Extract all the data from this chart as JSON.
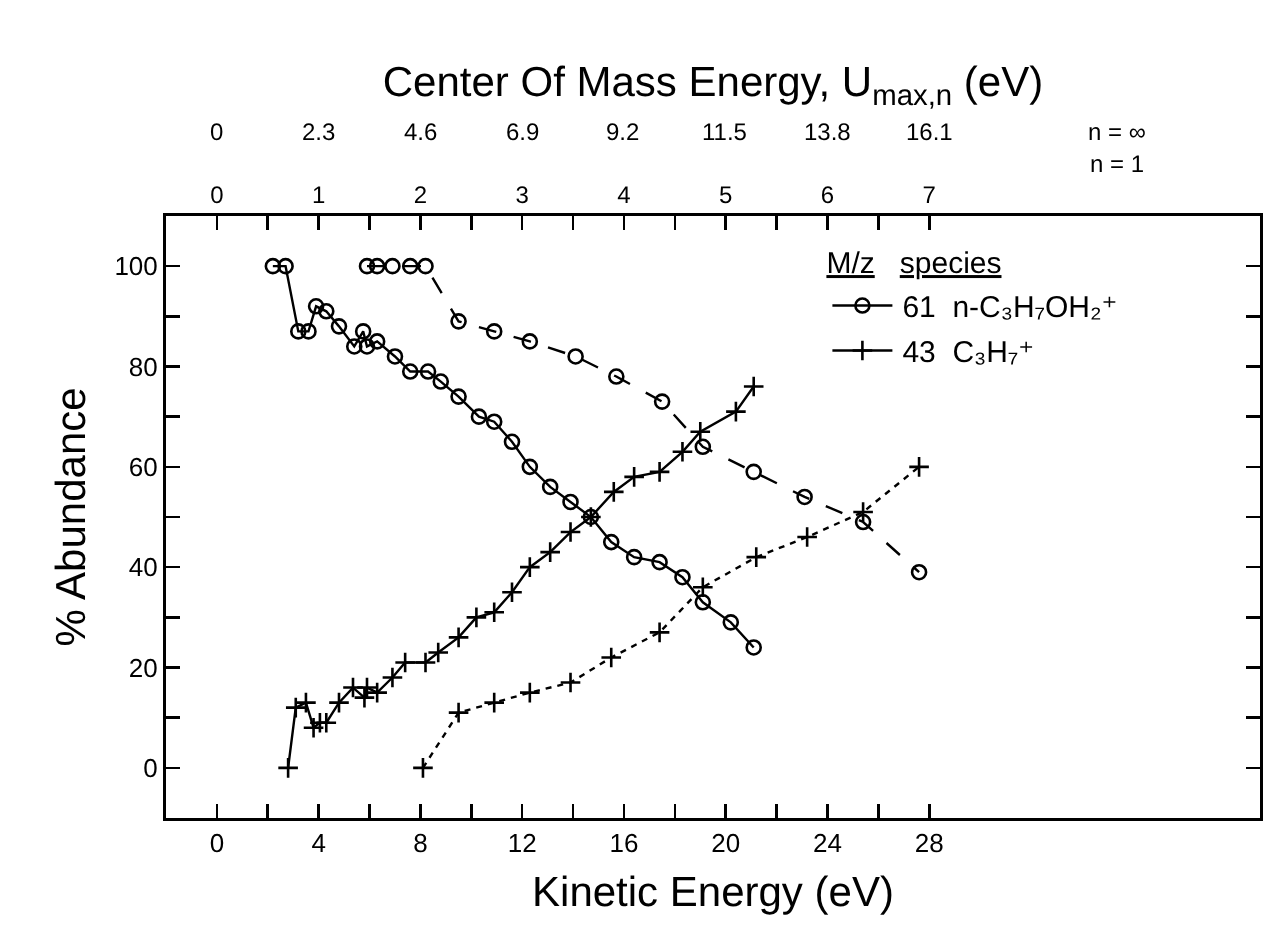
{
  "chart_data": {
    "type": "line",
    "xlabel": "Kinetic Energy (eV)",
    "ylabel": "% Abundance",
    "x2label": "Center Of Mass Energy, U$_{max,n}$ (eV)",
    "legend": "top right",
    "legend_title": "M/z   species",
    "annotations": [
      "0",
      "2.3",
      "4.6",
      "6.9",
      "9.2",
      "11.5",
      "13.8",
      "16.1",
      "n = ∞",
      "n = 1"
    ],
    "xlim": [
      -2,
      41
    ],
    "ylim": [
      -10,
      110
    ],
    "xticks": [
      0,
      {
        "value": 2,
        "label": null
      },
      4,
      {
        "value": 6,
        "label": null
      },
      8,
      {
        "value": 10,
        "label": null
      },
      12,
      {
        "value": 14,
        "label": null
      },
      16,
      {
        "value": 18,
        "label": null
      },
      20,
      {
        "value": 22,
        "label": null
      },
      24,
      {
        "value": 26,
        "label": null
      },
      28
    ],
    "yticks": [
      0,
      {
        "value": 10,
        "label": null
      },
      20,
      {
        "value": 30,
        "label": null
      },
      40,
      {
        "value": 50,
        "label": null
      },
      60,
      {
        "value": 70,
        "label": null
      },
      80,
      {
        "value": 90,
        "label": null
      },
      100
    ],
    "x2lim": [
      -0.5,
      10.25
    ],
    "x2ticks": [
      0,
      {
        "value": 0.5,
        "label": null
      },
      1,
      {
        "value": 1.5,
        "label": null
      },
      2,
      {
        "value": 2.5,
        "label": null
      },
      3,
      {
        "value": 3.5,
        "label": null
      },
      4,
      {
        "value": 4.5,
        "label": null
      },
      5,
      {
        "value": 5.5,
        "label": null
      },
      6,
      {
        "value": 6.5,
        "label": null
      },
      7
    ],
    "series": [
      {
        "name": "61  n-C₃H₇OH₂⁺",
        "color": "#000000",
        "marker": "circle",
        "line_style": "solid",
        "x": [
          2.2,
          2.7,
          3.2,
          3.6,
          3.9,
          4.3,
          4.8,
          5.4,
          5.75,
          5.9,
          6.3,
          7.0,
          7.6,
          8.3,
          8.8,
          9.5,
          10.3,
          10.9,
          11.6,
          12.3,
          13.1,
          13.9,
          14.7,
          15.5,
          16.4,
          17.4,
          18.3,
          19.1,
          20.2,
          21.1
        ],
        "values": [
          100,
          100,
          87,
          87,
          92,
          91,
          88,
          84,
          87,
          84,
          85,
          82,
          79,
          79,
          77,
          74,
          70,
          69,
          65,
          60,
          56,
          53,
          50,
          45,
          42,
          41,
          38,
          33,
          29,
          24
        ]
      },
      {
        "color": "#000000",
        "marker": "circle",
        "line_style": "dashed",
        "x": [
          5.9,
          6.3,
          6.9,
          7.6,
          8.2,
          9.5,
          10.9,
          12.3,
          14.1,
          15.7,
          17.5,
          19.1,
          21.1,
          23.1,
          25.4,
          27.6
        ],
        "values": [
          100,
          100,
          100,
          100,
          100,
          89,
          87,
          85,
          82,
          78,
          73,
          64,
          59,
          54,
          49,
          39
        ]
      },
      {
        "name": "43  C₃H₇⁺",
        "color": "#000000",
        "marker": "cross",
        "line_style": "solid",
        "x": [
          2.8,
          3.1,
          3.5,
          3.8,
          4.05,
          4.3,
          4.8,
          5.35,
          5.8,
          5.9,
          6.3,
          6.9,
          7.4,
          8.2,
          8.7,
          9.5,
          10.2,
          10.9,
          11.6,
          12.3,
          13.1,
          13.9,
          14.7,
          15.6,
          16.4,
          17.4,
          18.3,
          19.0,
          20.4,
          21.1
        ],
        "values": [
          0,
          12,
          13,
          8,
          9,
          9,
          13,
          16,
          14,
          16,
          15,
          18,
          21,
          21,
          23,
          26,
          30,
          31,
          35,
          40,
          43,
          47,
          50,
          55,
          58,
          59,
          63,
          67,
          71,
          76
        ]
      },
      {
        "color": "#000000",
        "marker": "cross",
        "line_style": "dotted",
        "x": [
          8.1,
          9.5,
          10.9,
          12.3,
          13.9,
          15.5,
          17.4,
          19.1,
          21.2,
          23.2,
          25.4,
          27.6
        ],
        "values": [
          0,
          11,
          13,
          15,
          17,
          22,
          27,
          36,
          42,
          46,
          51,
          60
        ]
      }
    ]
  }
}
